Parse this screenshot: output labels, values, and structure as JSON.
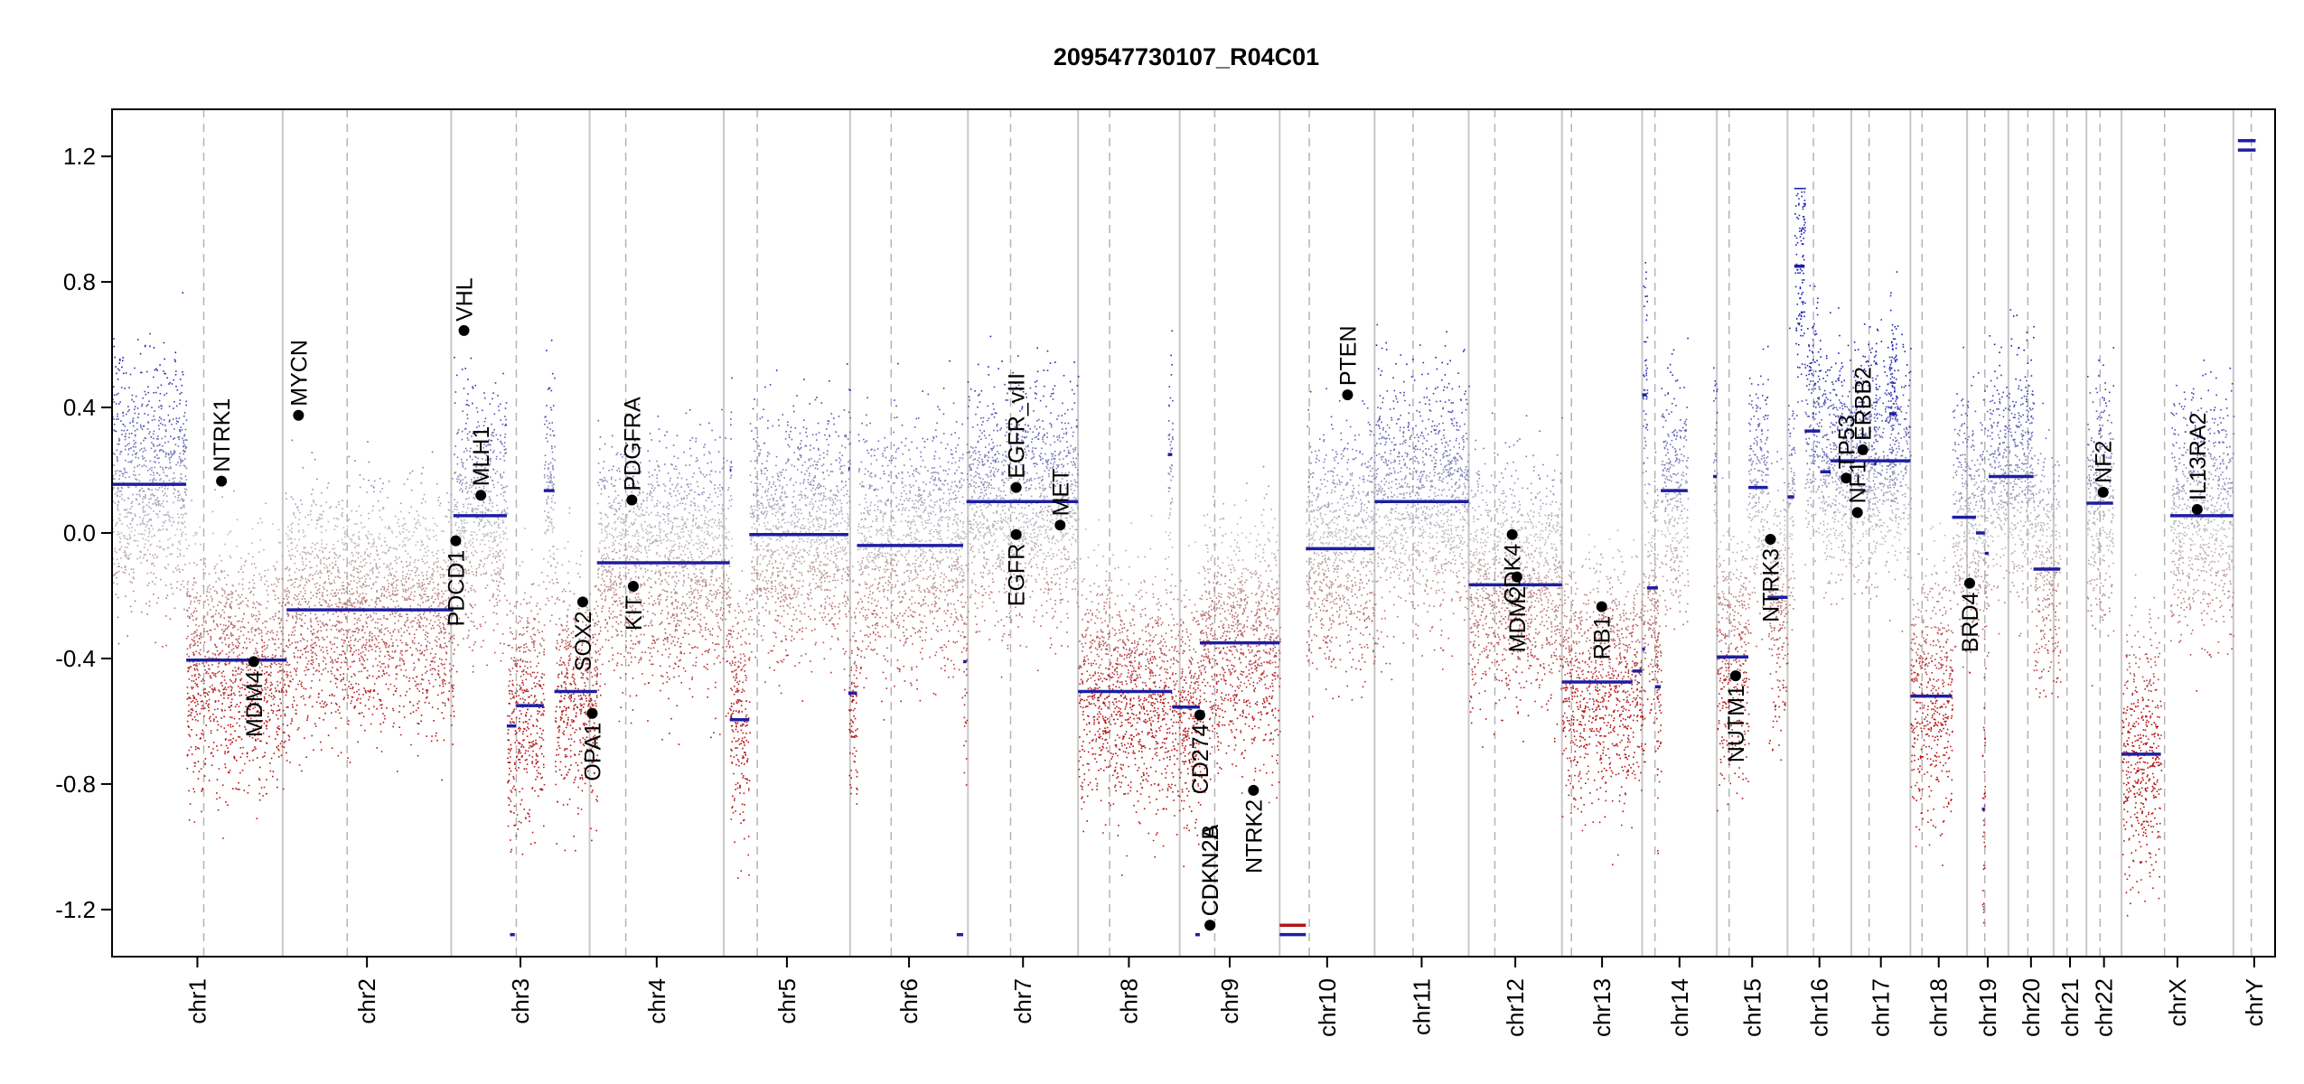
{
  "chart_data": {
    "type": "scatter",
    "title": "209547730107_R04C01",
    "xlabel": "",
    "ylabel": "",
    "ylim": [
      -1.35,
      1.35
    ],
    "y_ticks": [
      -1.2,
      -0.8,
      -0.4,
      0.0,
      0.4,
      0.8,
      1.2
    ],
    "y_tick_labels": [
      "-1.2",
      "-0.8",
      "-0.4",
      "0.0",
      "0.4",
      "0.8",
      "1.2"
    ],
    "grid": false,
    "legend": "none",
    "colors": {
      "gain": "#1f1fb0",
      "loss": "#b41414",
      "neutral": "#bcbcbc",
      "segment": "#1e1ea0",
      "gene_point": "#000000",
      "chrom_border": "#c8c8c8",
      "centromere": "#b4b4b4"
    },
    "chromosomes": [
      {
        "name": "chr1",
        "start": 0.0,
        "end": 0.0789,
        "cen": 0.0424
      },
      {
        "name": "chr2",
        "start": 0.0789,
        "end": 0.1568,
        "cen": 0.1087
      },
      {
        "name": "chr3",
        "start": 0.1568,
        "end": 0.2208,
        "cen": 0.1869
      },
      {
        "name": "chr4",
        "start": 0.2208,
        "end": 0.2828,
        "cen": 0.2375
      },
      {
        "name": "chr5",
        "start": 0.2828,
        "end": 0.3412,
        "cen": 0.2983
      },
      {
        "name": "chr6",
        "start": 0.3412,
        "end": 0.3957,
        "cen": 0.3602
      },
      {
        "name": "chr7",
        "start": 0.3957,
        "end": 0.4466,
        "cen": 0.4154
      },
      {
        "name": "chr8",
        "start": 0.4466,
        "end": 0.4936,
        "cen": 0.4612
      },
      {
        "name": "chr9",
        "start": 0.4936,
        "end": 0.5398,
        "cen": 0.5098
      },
      {
        "name": "chr10",
        "start": 0.5398,
        "end": 0.5837,
        "cen": 0.5535
      },
      {
        "name": "chr11",
        "start": 0.5837,
        "end": 0.6272,
        "cen": 0.6015
      },
      {
        "name": "chr12",
        "start": 0.6272,
        "end": 0.6703,
        "cen": 0.6393
      },
      {
        "name": "chr13",
        "start": 0.6703,
        "end": 0.7074,
        "cen": 0.6747
      },
      {
        "name": "chr14",
        "start": 0.7074,
        "end": 0.7419,
        "cen": 0.7133
      },
      {
        "name": "chr15",
        "start": 0.7419,
        "end": 0.7746,
        "cen": 0.7476
      },
      {
        "name": "chr16",
        "start": 0.7746,
        "end": 0.8041,
        "cen": 0.7866
      },
      {
        "name": "chr17",
        "start": 0.8041,
        "end": 0.8314,
        "cen": 0.8123
      },
      {
        "name": "chr18",
        "start": 0.8314,
        "end": 0.8576,
        "cen": 0.8368
      },
      {
        "name": "chr19",
        "start": 0.8576,
        "end": 0.8767,
        "cen": 0.8658
      },
      {
        "name": "chr20",
        "start": 0.8767,
        "end": 0.8976,
        "cen": 0.8857
      },
      {
        "name": "chr21",
        "start": 0.8976,
        "end": 0.9128,
        "cen": 0.9038
      },
      {
        "name": "chr22",
        "start": 0.9128,
        "end": 0.929,
        "cen": 0.9191
      },
      {
        "name": "chrX",
        "start": 0.929,
        "end": 0.9807,
        "cen": 0.9489
      },
      {
        "name": "chrY",
        "start": 0.9807,
        "end": 1.0,
        "cen": 0.989
      }
    ],
    "segments": [
      {
        "x0": 0.0,
        "x1": 0.0343,
        "y": 0.155
      },
      {
        "x0": 0.0343,
        "x1": 0.0807,
        "y": -0.405
      },
      {
        "x0": 0.0807,
        "x1": 0.1578,
        "y": -0.245
      },
      {
        "x0": 0.1578,
        "x1": 0.1825,
        "y": 0.055
      },
      {
        "x0": 0.1825,
        "x1": 0.1869,
        "y": -0.615
      },
      {
        "x0": 0.184,
        "x1": 0.1862,
        "y": -1.28
      },
      {
        "x0": 0.1869,
        "x1": 0.1996,
        "y": -0.55
      },
      {
        "x0": 0.1996,
        "x1": 0.2045,
        "y": 0.135
      },
      {
        "x0": 0.2045,
        "x1": 0.2242,
        "y": -0.505
      },
      {
        "x0": 0.2242,
        "x1": 0.2856,
        "y": -0.095
      },
      {
        "x0": 0.2856,
        "x1": 0.2863,
        "y": 0.2
      },
      {
        "x0": 0.2856,
        "x1": 0.2946,
        "y": -0.595
      },
      {
        "x0": 0.2946,
        "x1": 0.3404,
        "y": -0.005
      },
      {
        "x0": 0.3404,
        "x1": 0.3444,
        "y": -0.51
      },
      {
        "x0": 0.3404,
        "x1": 0.3411,
        "y": 0.205
      },
      {
        "x0": 0.3444,
        "x1": 0.3935,
        "y": -0.04
      },
      {
        "x0": 0.3905,
        "x1": 0.3935,
        "y": -1.28
      },
      {
        "x0": 0.3935,
        "x1": 0.395,
        "y": -0.41
      },
      {
        "x0": 0.395,
        "x1": 0.4466,
        "y": 0.1
      },
      {
        "x0": 0.4466,
        "x1": 0.4901,
        "y": -0.505
      },
      {
        "x0": 0.4881,
        "x1": 0.4901,
        "y": 0.25
      },
      {
        "x0": 0.4901,
        "x1": 0.5029,
        "y": -0.555
      },
      {
        "x0": 0.5008,
        "x1": 0.5029,
        "y": -1.28
      },
      {
        "x0": 0.5029,
        "x1": 0.5398,
        "y": -0.35
      },
      {
        "x0": 0.5398,
        "x1": 0.5519,
        "y": -1.25
      },
      {
        "x0": 0.5398,
        "x1": 0.5519,
        "y": -1.28
      },
      {
        "x0": 0.5519,
        "x1": 0.5837,
        "y": -0.05
      },
      {
        "x0": 0.5837,
        "x1": 0.6272,
        "y": 0.1
      },
      {
        "x0": 0.6272,
        "x1": 0.6703,
        "y": -0.165
      },
      {
        "x0": 0.6703,
        "x1": 0.7029,
        "y": -0.475
      },
      {
        "x0": 0.7029,
        "x1": 0.7074,
        "y": -0.44
      },
      {
        "x0": 0.7074,
        "x1": 0.7087,
        "y": -0.37
      },
      {
        "x0": 0.7074,
        "x1": 0.7096,
        "y": 0.44
      },
      {
        "x0": 0.7096,
        "x1": 0.7147,
        "y": -0.175
      },
      {
        "x0": 0.7133,
        "x1": 0.716,
        "y": -0.49
      },
      {
        "x0": 0.716,
        "x1": 0.7284,
        "y": 0.135
      },
      {
        "x0": 0.7402,
        "x1": 0.7419,
        "y": 0.18
      },
      {
        "x0": 0.7419,
        "x1": 0.7565,
        "y": -0.395
      },
      {
        "x0": 0.7565,
        "x1": 0.7654,
        "y": 0.145
      },
      {
        "x0": 0.7654,
        "x1": 0.7746,
        "y": -0.205
      },
      {
        "x0": 0.7746,
        "x1": 0.7777,
        "y": 0.115
      },
      {
        "x0": 0.7777,
        "x1": 0.7825,
        "y": 0.85
      },
      {
        "x0": 0.7825,
        "x1": 0.7897,
        "y": 0.325
      },
      {
        "x0": 0.7897,
        "x1": 0.7945,
        "y": 0.195
      },
      {
        "x0": 0.7945,
        "x1": 0.8314,
        "y": 0.23
      },
      {
        "x0": 0.8146,
        "x1": 0.8156,
        "y": 0.22
      },
      {
        "x0": 0.8216,
        "x1": 0.8249,
        "y": 0.38
      },
      {
        "x0": 0.8314,
        "x1": 0.8507,
        "y": -0.52
      },
      {
        "x0": 0.8507,
        "x1": 0.8617,
        "y": 0.05
      },
      {
        "x0": 0.8617,
        "x1": 0.8658,
        "y": 0.0
      },
      {
        "x0": 0.8645,
        "x1": 0.8658,
        "y": -0.88
      },
      {
        "x0": 0.8658,
        "x1": 0.8676,
        "y": -0.065
      },
      {
        "x0": 0.8676,
        "x1": 0.8883,
        "y": 0.18
      },
      {
        "x0": 0.8883,
        "x1": 0.9006,
        "y": -0.115
      },
      {
        "x0": 0.9128,
        "x1": 0.9251,
        "y": 0.095
      },
      {
        "x0": 0.929,
        "x1": 0.9472,
        "y": -0.705
      },
      {
        "x0": 0.9515,
        "x1": 0.9807,
        "y": 0.055
      },
      {
        "x0": 0.9828,
        "x1": 0.991,
        "y": 1.22
      },
      {
        "x0": 0.9828,
        "x1": 0.991,
        "y": 1.25
      }
    ],
    "genes": [
      {
        "name": "NTRK1",
        "x": 0.0506,
        "y": 0.165,
        "label": "above"
      },
      {
        "name": "MDM4",
        "x": 0.0655,
        "y": -0.41,
        "label": "below"
      },
      {
        "name": "MYCN",
        "x": 0.0862,
        "y": 0.375,
        "label": "above"
      },
      {
        "name": "VHL",
        "x": 0.1627,
        "y": 0.645,
        "label": "above"
      },
      {
        "name": "MLH1",
        "x": 0.1705,
        "y": 0.12,
        "label": "above"
      },
      {
        "name": "PDCD1",
        "x": 0.1589,
        "y": -0.025,
        "label": "below"
      },
      {
        "name": "SOX2",
        "x": 0.2176,
        "y": -0.22,
        "label": "below"
      },
      {
        "name": "OPA1",
        "x": 0.222,
        "y": -0.575,
        "label": "below"
      },
      {
        "name": "PDGFRA",
        "x": 0.2403,
        "y": 0.105,
        "label": "above"
      },
      {
        "name": "KIT",
        "x": 0.241,
        "y": -0.17,
        "label": "below"
      },
      {
        "name": "EGFR_vIII",
        "x": 0.418,
        "y": 0.145,
        "label": "above"
      },
      {
        "name": "EGFR",
        "x": 0.418,
        "y": -0.005,
        "label": "below"
      },
      {
        "name": "MET",
        "x": 0.4383,
        "y": 0.025,
        "label": "above"
      },
      {
        "name": "CD274",
        "x": 0.5029,
        "y": -0.58,
        "label": "below"
      },
      {
        "name": "CDKN2A",
        "x": 0.5076,
        "y": -1.25,
        "label": "above"
      },
      {
        "name": "CDKN2B",
        "x": 0.5076,
        "y": -1.25,
        "label": "above"
      },
      {
        "name": "NTRK2",
        "x": 0.5277,
        "y": -0.82,
        "label": "below"
      },
      {
        "name": "PTEN",
        "x": 0.5712,
        "y": 0.44,
        "label": "above"
      },
      {
        "name": "CDK4",
        "x": 0.6473,
        "y": -0.005,
        "label": "below"
      },
      {
        "name": "MDM2",
        "x": 0.6495,
        "y": -0.14,
        "label": "below"
      },
      {
        "name": "RB1",
        "x": 0.6887,
        "y": -0.235,
        "label": "below"
      },
      {
        "name": "NUTM1",
        "x": 0.7506,
        "y": -0.455,
        "label": "below"
      },
      {
        "name": "NTRK3",
        "x": 0.7667,
        "y": -0.02,
        "label": "below"
      },
      {
        "name": "TP53",
        "x": 0.8017,
        "y": 0.175,
        "label": "above"
      },
      {
        "name": "NF1",
        "x": 0.8069,
        "y": 0.065,
        "label": "above"
      },
      {
        "name": "ERBB2",
        "x": 0.8094,
        "y": 0.265,
        "label": "above"
      },
      {
        "name": "BRD4",
        "x": 0.8588,
        "y": -0.16,
        "label": "below"
      },
      {
        "name": "NF2",
        "x": 0.9205,
        "y": 0.13,
        "label": "above"
      },
      {
        "name": "IL13RA2",
        "x": 0.964,
        "y": 0.075,
        "label": "above"
      }
    ]
  }
}
